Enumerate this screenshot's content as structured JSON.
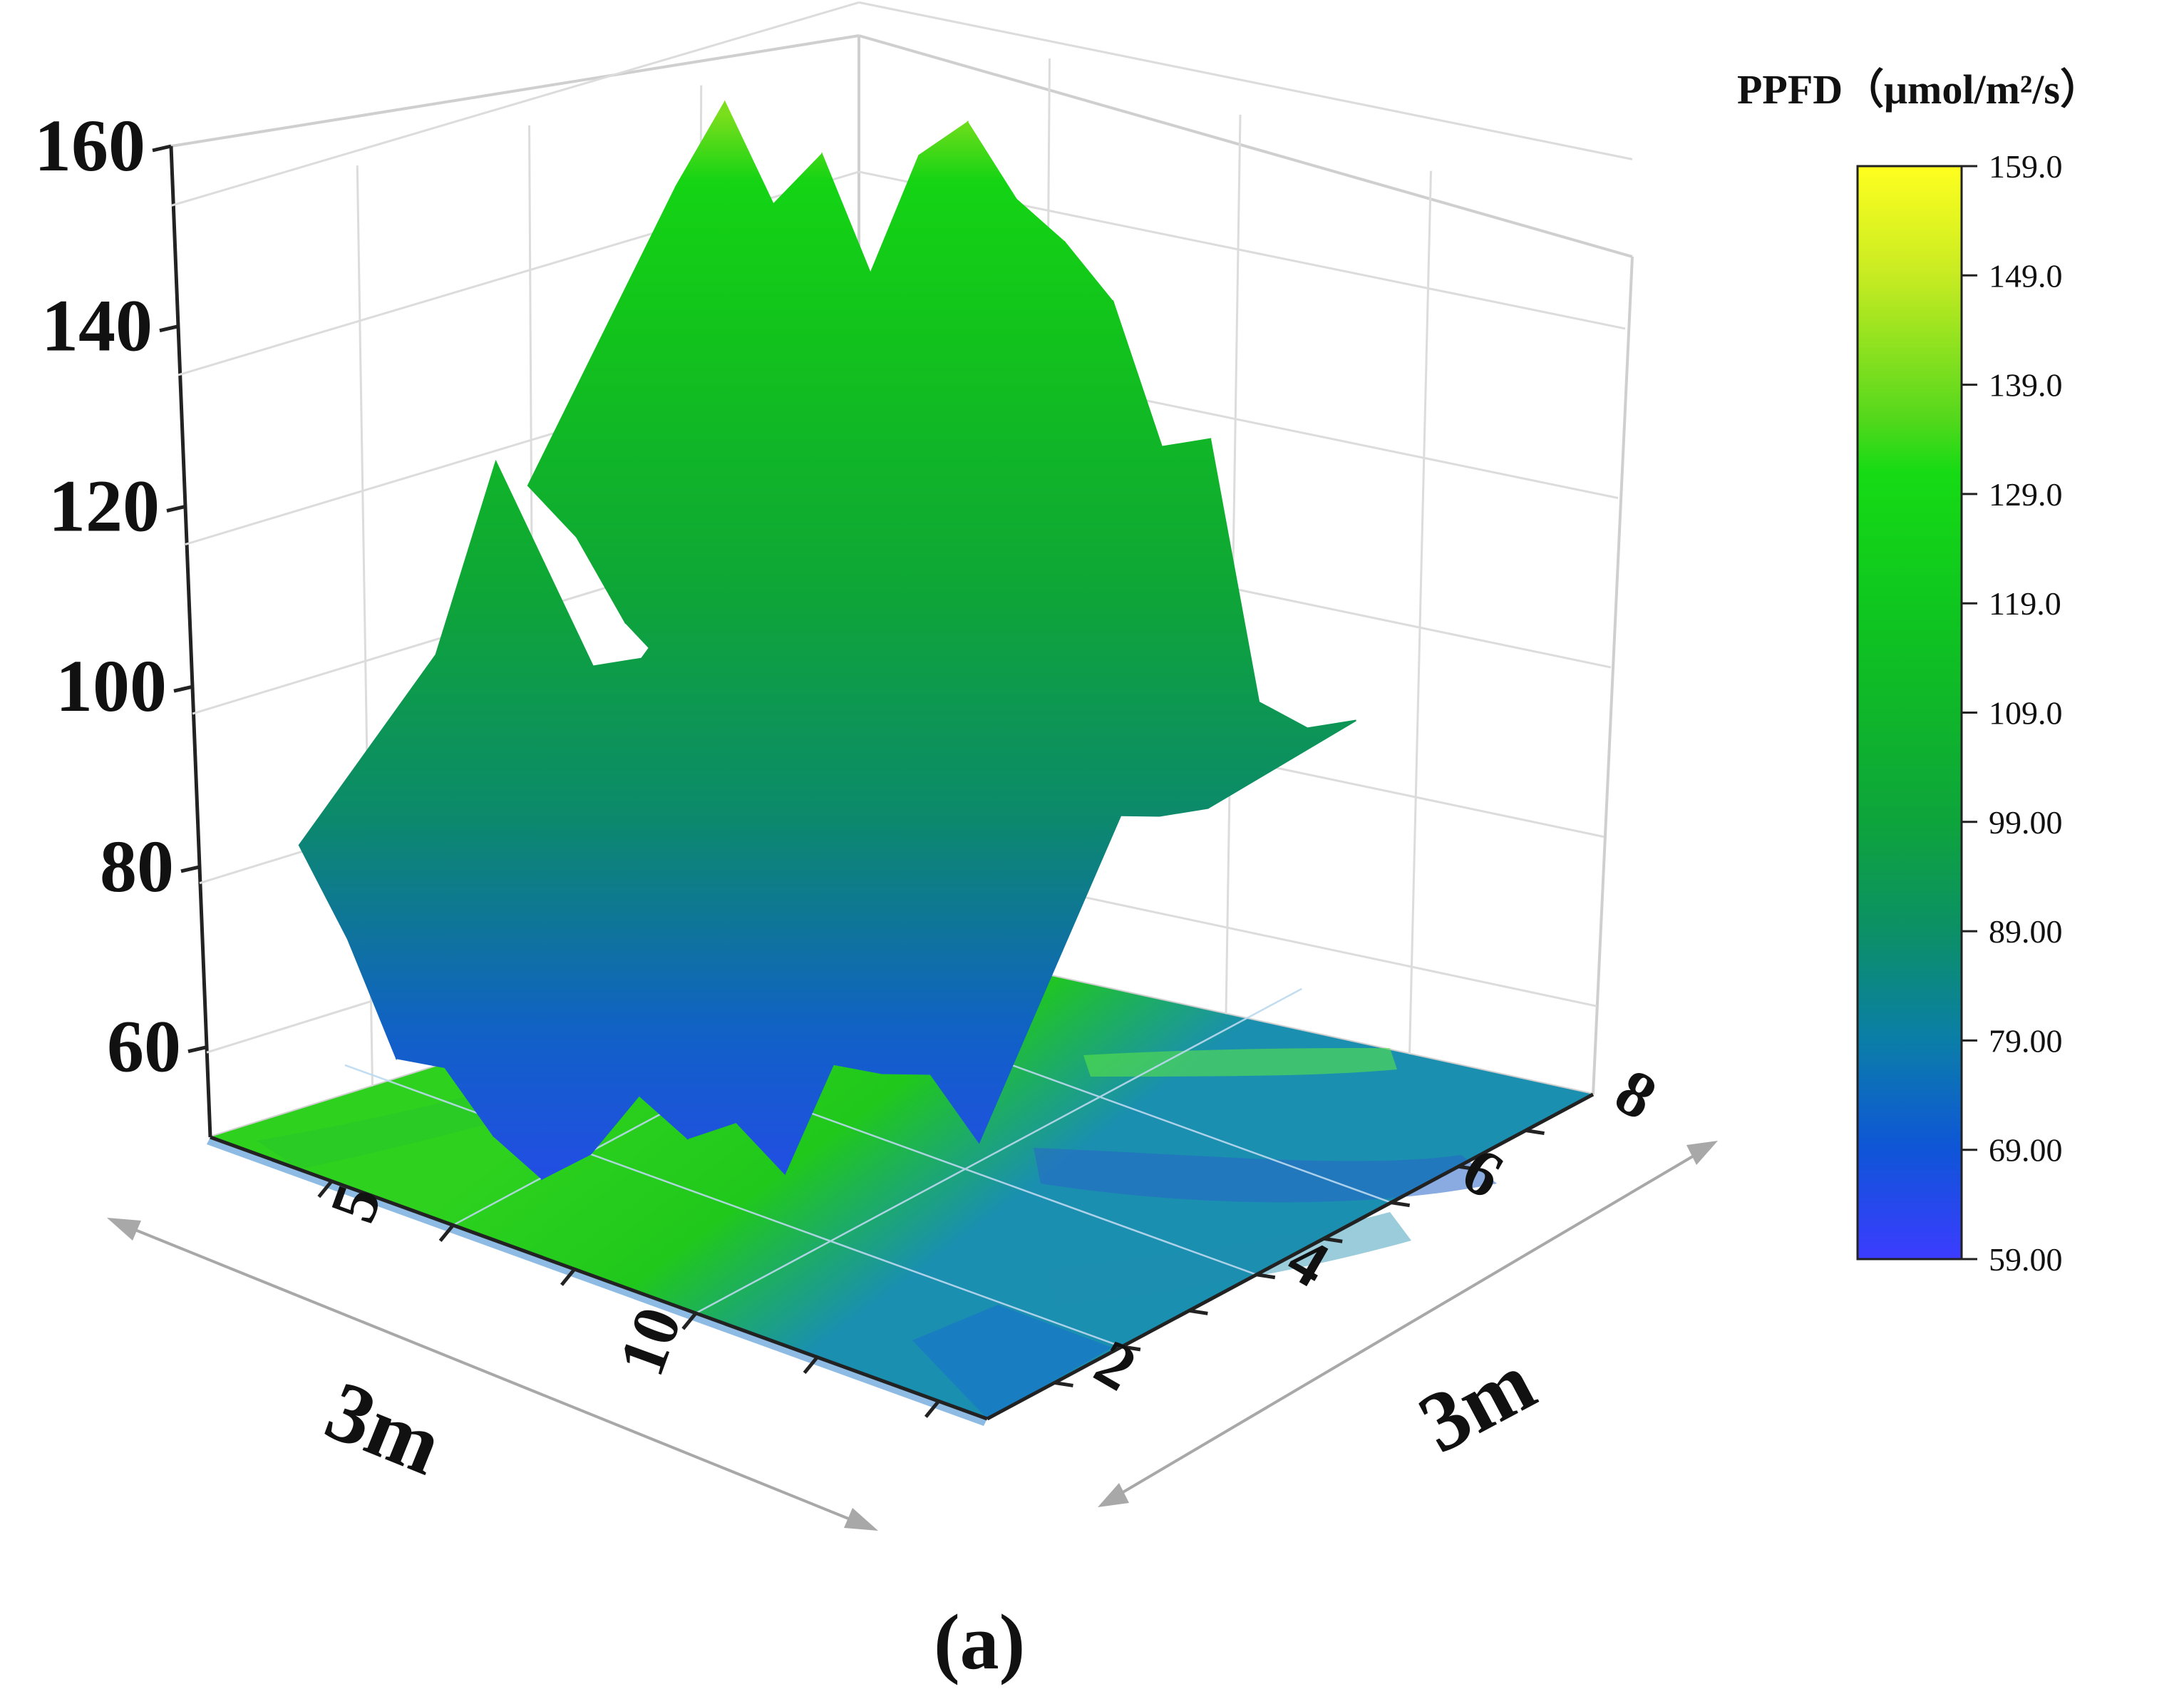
{
  "chart_data": {
    "type": "surface3d",
    "title": "",
    "panel_label": "(a)",
    "x_axis": {
      "label": "3m",
      "ticks": [
        "5",
        "10"
      ]
    },
    "y_axis": {
      "label": "3m",
      "ticks": [
        "2",
        "4",
        "6",
        "8"
      ]
    },
    "z_axis": {
      "label": "",
      "ticks": [
        "60",
        "80",
        "100",
        "120",
        "140",
        "160"
      ]
    },
    "colorbar": {
      "title": "PPFD（μmol/m²/s）",
      "min": 59.0,
      "max": 159.0,
      "ticks": [
        "159.0",
        "149.0",
        "139.0",
        "129.0",
        "119.0",
        "109.0",
        "99.00",
        "89.00",
        "79.00",
        "69.00",
        "59.00"
      ],
      "colors": [
        "#3c3cff",
        "#0f55d8",
        "#0b7ea8",
        "#0c9066",
        "#0ea43c",
        "#0fb62a",
        "#0fc71f",
        "#16db14",
        "#55d81c",
        "#c7eb22",
        "#ffff1f"
      ]
    },
    "front_surface": {
      "description_free": true,
      "x": [
        15.0,
        14.0,
        13.0,
        12.0,
        11.0,
        10.0,
        9.0,
        8.0,
        7.0,
        6.0,
        5.0,
        4.0,
        3.0,
        2.0,
        1.0
      ],
      "top": [
        99,
        122,
        112,
        102,
        105,
        115,
        108,
        111,
        113,
        104,
        111,
        120,
        124,
        120,
        109
      ],
      "bottom": [
        84,
        75,
        63,
        64,
        58,
        55,
        60,
        69,
        66,
        70,
        66,
        81,
        82,
        84,
        78
      ]
    },
    "back_surface": {
      "x": [
        15.0,
        14.0,
        13.0,
        12.0,
        11.0,
        10.0,
        9.0,
        8.0,
        7.0,
        6.0,
        5.0,
        4.0,
        3.0,
        2.0,
        1.0
      ],
      "top": [
        138,
        150,
        140,
        148,
        136,
        152,
        158,
        151,
        148,
        143,
        128,
        131,
        102,
        101,
        104
      ],
      "bottom": [
        112,
        108,
        100,
        96,
        94,
        93,
        90,
        88,
        89,
        84,
        83,
        80,
        98,
        100,
        103
      ]
    },
    "floor_heatmap": {
      "range": [
        59,
        159
      ],
      "dominant_value": 125
    }
  }
}
